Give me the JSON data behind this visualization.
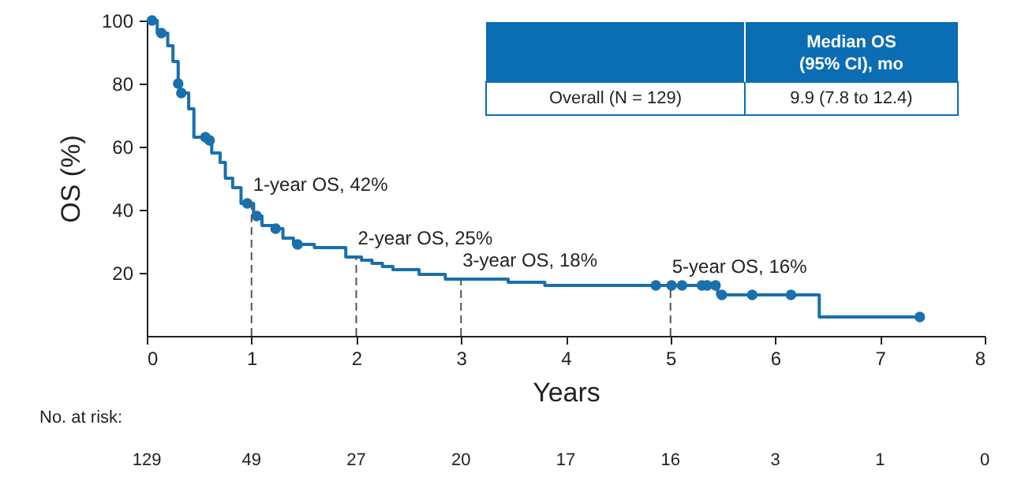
{
  "chart_data": {
    "type": "step",
    "xlabel": "Years",
    "ylabel": "OS (%)",
    "xlim": [
      0,
      8
    ],
    "xticks": [
      0,
      1,
      2,
      3,
      4,
      5,
      6,
      7,
      8
    ],
    "ylim": [
      0,
      100
    ],
    "yticks": [
      20,
      40,
      60,
      80,
      100
    ],
    "grid": false,
    "series": [
      {
        "color": "#1a6fad",
        "x": [
          0,
          0.1,
          0.2,
          0.25,
          0.3,
          0.32,
          0.4,
          0.45,
          0.58,
          0.62,
          0.7,
          0.75,
          0.82,
          0.9,
          1.02,
          1.1,
          1.2,
          1.3,
          1.4,
          1.6,
          1.9,
          2.05,
          2.15,
          2.25,
          2.35,
          2.6,
          2.85,
          3.45,
          3.8,
          5.45,
          6.42,
          7.4
        ],
        "values": [
          100,
          96,
          92,
          87,
          80,
          77,
          72,
          63,
          62,
          58,
          55,
          50,
          47,
          42,
          38,
          35,
          34,
          31,
          29,
          28,
          25,
          24,
          23,
          22,
          21,
          19.5,
          18,
          17,
          16,
          13,
          6,
          6
        ]
      },
      {
        "type": "scatter",
        "marker": "circle",
        "color": "#1a6fad",
        "x": [
          0.05,
          0.14,
          0.3,
          0.33,
          0.56,
          0.6,
          0.96,
          1.05,
          1.23,
          1.44,
          4.86,
          5.01,
          5.11,
          5.3,
          5.35,
          5.43,
          5.49,
          5.78,
          6.15,
          7.38
        ],
        "values": [
          100,
          96,
          80,
          77,
          63,
          62,
          42,
          38,
          34,
          29,
          16,
          16,
          16,
          16,
          16,
          16,
          13,
          13,
          13,
          6
        ]
      }
    ],
    "annotations": [
      {
        "text": "1-year OS, 42%",
        "x": 1,
        "y": 42
      },
      {
        "text": "2-year OS, 25%",
        "x": 2,
        "y": 25
      },
      {
        "text": "3-year OS, 18%",
        "x": 3,
        "y": 18
      },
      {
        "text": "5-year OS, 16%",
        "x": 5,
        "y": 16
      },
      "Median OS (95% CI), mo",
      "Overall (N = 129)",
      "9.9 (7.8 to 12.4)",
      "No. at risk:",
      "129",
      "49",
      "27",
      "20",
      "17",
      "16",
      "3",
      "1",
      "0"
    ]
  }
}
